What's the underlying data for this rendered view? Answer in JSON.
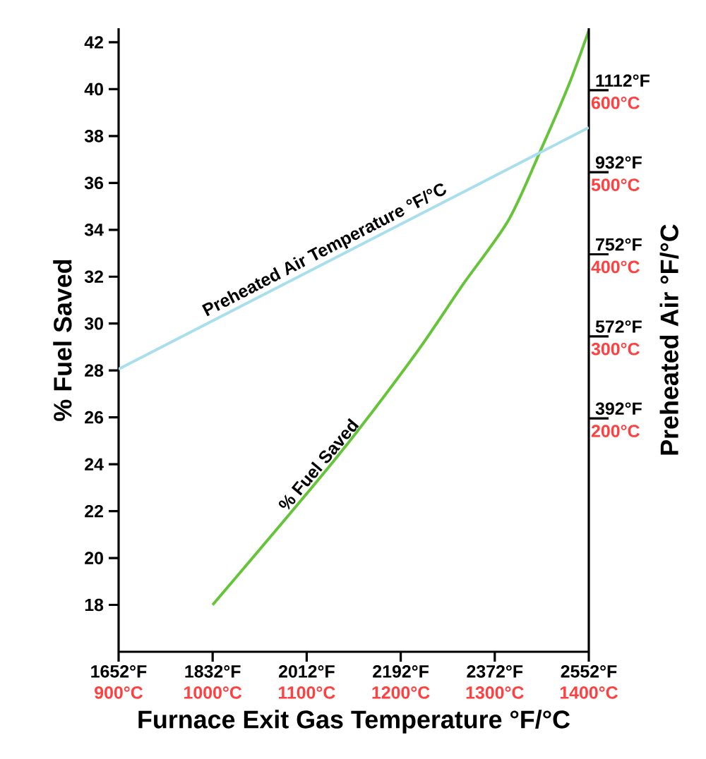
{
  "chart_data": {
    "type": "line",
    "xlabel": "Furnace Exit Gas Temperature °F/°C",
    "ylabel": "% Fuel Saved",
    "y2label": "Preheated Air °F/°C",
    "xlim": [
      1652,
      2552
    ],
    "xticks": [
      {
        "value": 1652,
        "label": "1652°F"
      },
      {
        "value": 1832,
        "label": "1832°F"
      },
      {
        "value": 2012,
        "label": "2012°F"
      },
      {
        "value": 2192,
        "label": "2192°F"
      },
      {
        "value": 2372,
        "label": "2372°F"
      },
      {
        "value": 2552,
        "label": "2552°F"
      }
    ],
    "x2lim": [
      900,
      1400
    ],
    "x2ticks": [
      {
        "value": 900,
        "label": "900°C"
      },
      {
        "value": 1000,
        "label": "1000°C"
      },
      {
        "value": 1100,
        "label": "1100°C"
      },
      {
        "value": 1200,
        "label": "1200°C"
      },
      {
        "value": 1300,
        "label": "1300°C"
      },
      {
        "value": 1400,
        "label": "1400°C"
      }
    ],
    "ylim": [
      16,
      42.6
    ],
    "yticks": [
      18,
      20,
      22,
      24,
      26,
      28,
      30,
      32,
      34,
      36,
      38,
      40,
      42
    ],
    "y2lim": [
      -120,
      1248
    ],
    "y2ticks": [
      {
        "value": 392,
        "label": "392°F"
      },
      {
        "value": 572,
        "label": "572°F"
      },
      {
        "value": 752,
        "label": "752°F"
      },
      {
        "value": 932,
        "label": "932°F"
      },
      {
        "value": 1112,
        "label": "1112°F"
      }
    ],
    "y3lim": [
      -84.4,
      675.6
    ],
    "y3ticks": [
      {
        "value": 200,
        "label": "200°C"
      },
      {
        "value": 300,
        "label": "300°C"
      },
      {
        "value": 400,
        "label": "400°C"
      },
      {
        "value": 500,
        "label": "500°C"
      },
      {
        "value": 600,
        "label": "600°C"
      }
    ],
    "grid": false,
    "legend": false,
    "series": [
      {
        "name": "% Fuel Saved",
        "color": "#66c43a",
        "x": [
          1832,
          2066,
          2217,
          2309,
          2398,
          2460,
          2514,
          2552
        ],
        "values": [
          18,
          24.2,
          28.6,
          31.6,
          34.4,
          37.4,
          40.2,
          42.5
        ]
      },
      {
        "name": "Preheated Air Temperature °F/°C",
        "color": "#a9dfec",
        "axis": "y2",
        "x": [
          1652,
          2552
        ],
        "values": [
          500,
          1030
        ]
      }
    ]
  }
}
